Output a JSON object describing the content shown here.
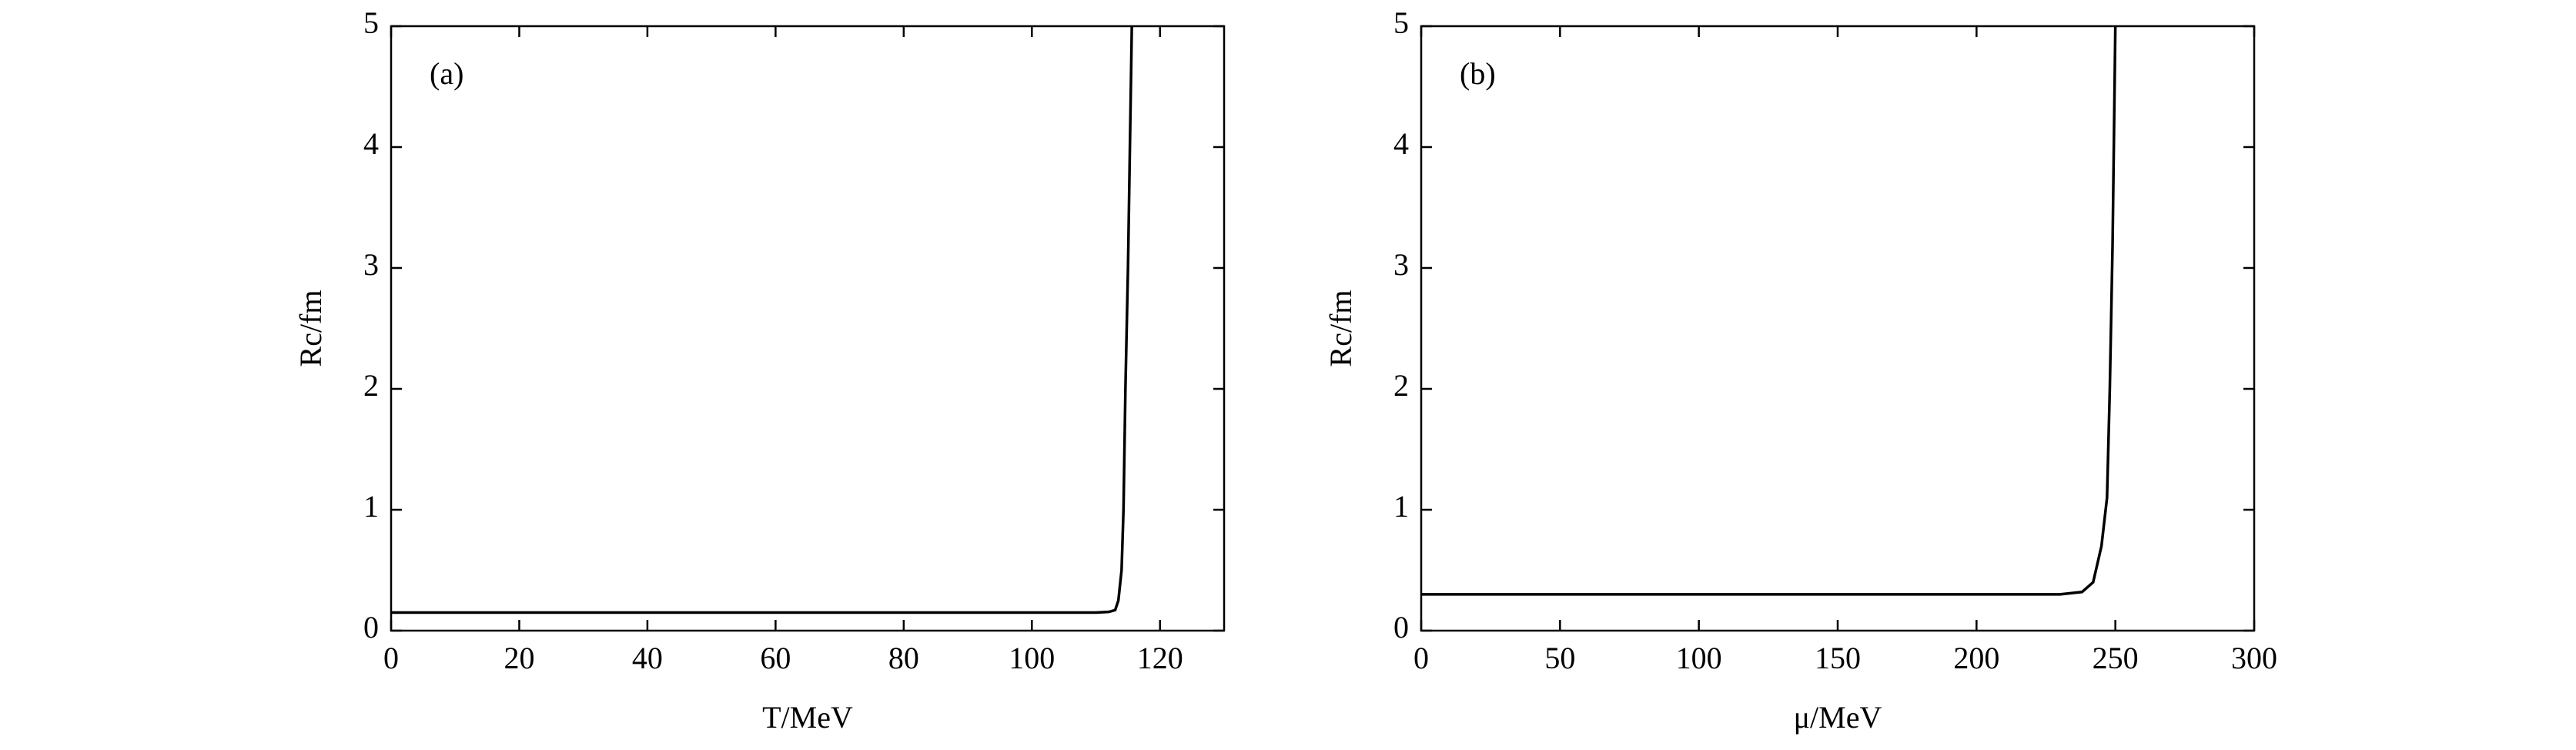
{
  "chart_data": [
    {
      "type": "line",
      "annotation": "(a)",
      "x_label": "T/MeV",
      "y_label": "Rc/fm",
      "xlim": [
        0,
        130
      ],
      "xticks": [
        0,
        20,
        40,
        60,
        80,
        100,
        120
      ],
      "ylim": [
        0,
        5
      ],
      "yticks": [
        0,
        1,
        2,
        3,
        4,
        5
      ],
      "series": [
        {
          "color": "#000000",
          "x": [
            0,
            50,
            100,
            110,
            112,
            113,
            113.5,
            114,
            114.3,
            114.6,
            115,
            115.3,
            115.6
          ],
          "values": [
            0.15,
            0.15,
            0.15,
            0.15,
            0.155,
            0.17,
            0.25,
            0.5,
            1,
            2,
            3,
            4,
            5
          ]
        }
      ]
    },
    {
      "type": "line",
      "annotation": "(b)",
      "x_label": "μ/MeV",
      "y_label": "Rc/fm",
      "xlim": [
        0,
        300
      ],
      "xticks": [
        0,
        50,
        100,
        150,
        200,
        250,
        300
      ],
      "ylim": [
        0,
        5
      ],
      "yticks": [
        0,
        1,
        2,
        3,
        4,
        5
      ],
      "series": [
        {
          "color": "#000000",
          "x": [
            0,
            100,
            200,
            230,
            238,
            242,
            245,
            247,
            248,
            249,
            250
          ],
          "values": [
            0.3,
            0.3,
            0.3,
            0.3,
            0.32,
            0.4,
            0.7,
            1.1,
            2,
            3.2,
            5
          ]
        }
      ]
    }
  ]
}
